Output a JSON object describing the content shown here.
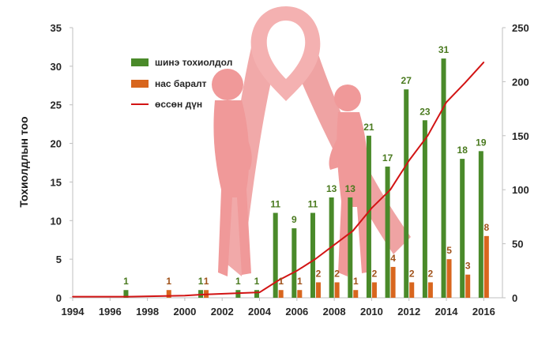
{
  "colors": {
    "new_cases": "#4a8a2a",
    "deaths": "#d8661e",
    "cumulative": "#d21414",
    "new_label": "#4a7a1f",
    "death_label": "#a0521a",
    "ribbon": "#f0a0a0",
    "figure": "#ef8f8f"
  },
  "chart_data": {
    "type": "bar",
    "ylabel": "Тохиолдлын тоо",
    "x_ticks": [
      "1994",
      "1996",
      "1998",
      "2000",
      "2002",
      "2004",
      "2006",
      "2008",
      "2010",
      "2012",
      "2014",
      "2016"
    ],
    "y_ticks": [
      "0",
      "5",
      "10",
      "15",
      "20",
      "25",
      "30",
      "35"
    ],
    "y2_ticks": [
      "0",
      "50",
      "100",
      "150",
      "200",
      "250"
    ],
    "ylim": [
      0,
      35
    ],
    "y2lim": [
      0,
      250
    ],
    "xlim": [
      1994,
      2017
    ],
    "legend_position": "top-left",
    "series": [
      {
        "name": "шинэ тохиолдол",
        "kind": "bar",
        "axis": "left",
        "points": [
          {
            "year": 1997,
            "value": 1
          },
          {
            "year": 2001,
            "value": 1
          },
          {
            "year": 2003,
            "value": 1
          },
          {
            "year": 2004,
            "value": 1
          },
          {
            "year": 2005,
            "value": 11
          },
          {
            "year": 2006,
            "value": 9
          },
          {
            "year": 2007,
            "value": 11
          },
          {
            "year": 2008,
            "value": 13
          },
          {
            "year": 2009,
            "value": 13
          },
          {
            "year": 2010,
            "value": 21
          },
          {
            "year": 2011,
            "value": 17
          },
          {
            "year": 2012,
            "value": 27
          },
          {
            "year": 2013,
            "value": 23
          },
          {
            "year": 2014,
            "value": 31
          },
          {
            "year": 2015,
            "value": 18
          },
          {
            "year": 2016,
            "value": 19
          }
        ]
      },
      {
        "name": "нас баралт",
        "kind": "bar",
        "axis": "left",
        "points": [
          {
            "year": 1999,
            "value": 1
          },
          {
            "year": 2001,
            "value": 1
          },
          {
            "year": 2005,
            "value": 1
          },
          {
            "year": 2006,
            "value": 1
          },
          {
            "year": 2007,
            "value": 2
          },
          {
            "year": 2008,
            "value": 2
          },
          {
            "year": 2009,
            "value": 1
          },
          {
            "year": 2010,
            "value": 2
          },
          {
            "year": 2011,
            "value": 4
          },
          {
            "year": 2012,
            "value": 2
          },
          {
            "year": 2013,
            "value": 2
          },
          {
            "year": 2014,
            "value": 5
          },
          {
            "year": 2015,
            "value": 3
          },
          {
            "year": 2016,
            "value": 8
          }
        ]
      },
      {
        "name": "өссөн дүн",
        "kind": "line",
        "axis": "right",
        "points": [
          {
            "year": 1994,
            "value": 1
          },
          {
            "year": 1997,
            "value": 1
          },
          {
            "year": 2000,
            "value": 2
          },
          {
            "year": 2001,
            "value": 3
          },
          {
            "year": 2004,
            "value": 5
          },
          {
            "year": 2005,
            "value": 16
          },
          {
            "year": 2006,
            "value": 25
          },
          {
            "year": 2007,
            "value": 36
          },
          {
            "year": 2008,
            "value": 49
          },
          {
            "year": 2009,
            "value": 62
          },
          {
            "year": 2010,
            "value": 83
          },
          {
            "year": 2011,
            "value": 100
          },
          {
            "year": 2012,
            "value": 127
          },
          {
            "year": 2013,
            "value": 150
          },
          {
            "year": 2014,
            "value": 181
          },
          {
            "year": 2015,
            "value": 199
          },
          {
            "year": 2016,
            "value": 218
          }
        ]
      }
    ]
  }
}
